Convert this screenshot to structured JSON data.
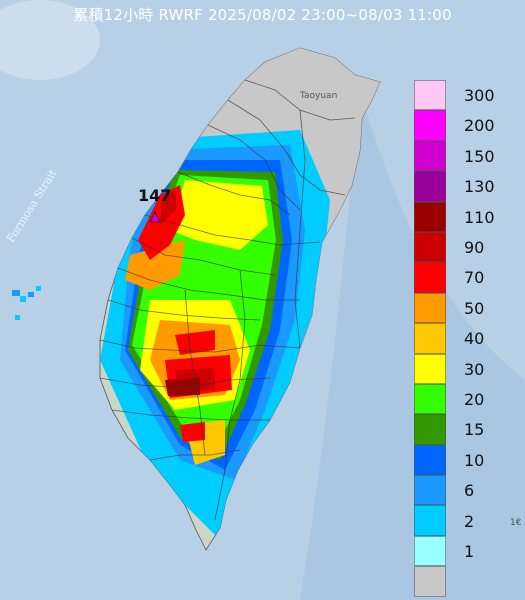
{
  "title": "累積12小時 RWRF 2025/08/02 23:00~08/03 11:00",
  "map_labels": {
    "strait": "Formosa Strait",
    "max_value": "147",
    "city": "Taoyuan",
    "edge_tick": "1€"
  },
  "legend": [
    {
      "label": "300",
      "color": "#ffc8f5"
    },
    {
      "label": "200",
      "color": "#ff00ff"
    },
    {
      "label": "150",
      "color": "#d000d0"
    },
    {
      "label": "130",
      "color": "#9a009a"
    },
    {
      "label": "110",
      "color": "#9a0000"
    },
    {
      "label": "90",
      "color": "#cc0000"
    },
    {
      "label": "70",
      "color": "#ff0000"
    },
    {
      "label": "50",
      "color": "#ff9a00"
    },
    {
      "label": "40",
      "color": "#ffc800"
    },
    {
      "label": "30",
      "color": "#ffff00"
    },
    {
      "label": "20",
      "color": "#33ff00"
    },
    {
      "label": "15",
      "color": "#339900"
    },
    {
      "label": "10",
      "color": "#0066ff"
    },
    {
      "label": "6",
      "color": "#1a99ff"
    },
    {
      "label": "2",
      "color": "#00ccff"
    },
    {
      "label": "1",
      "color": "#99ffff"
    },
    {
      "label": "",
      "color": "#c8c8c8"
    }
  ]
}
